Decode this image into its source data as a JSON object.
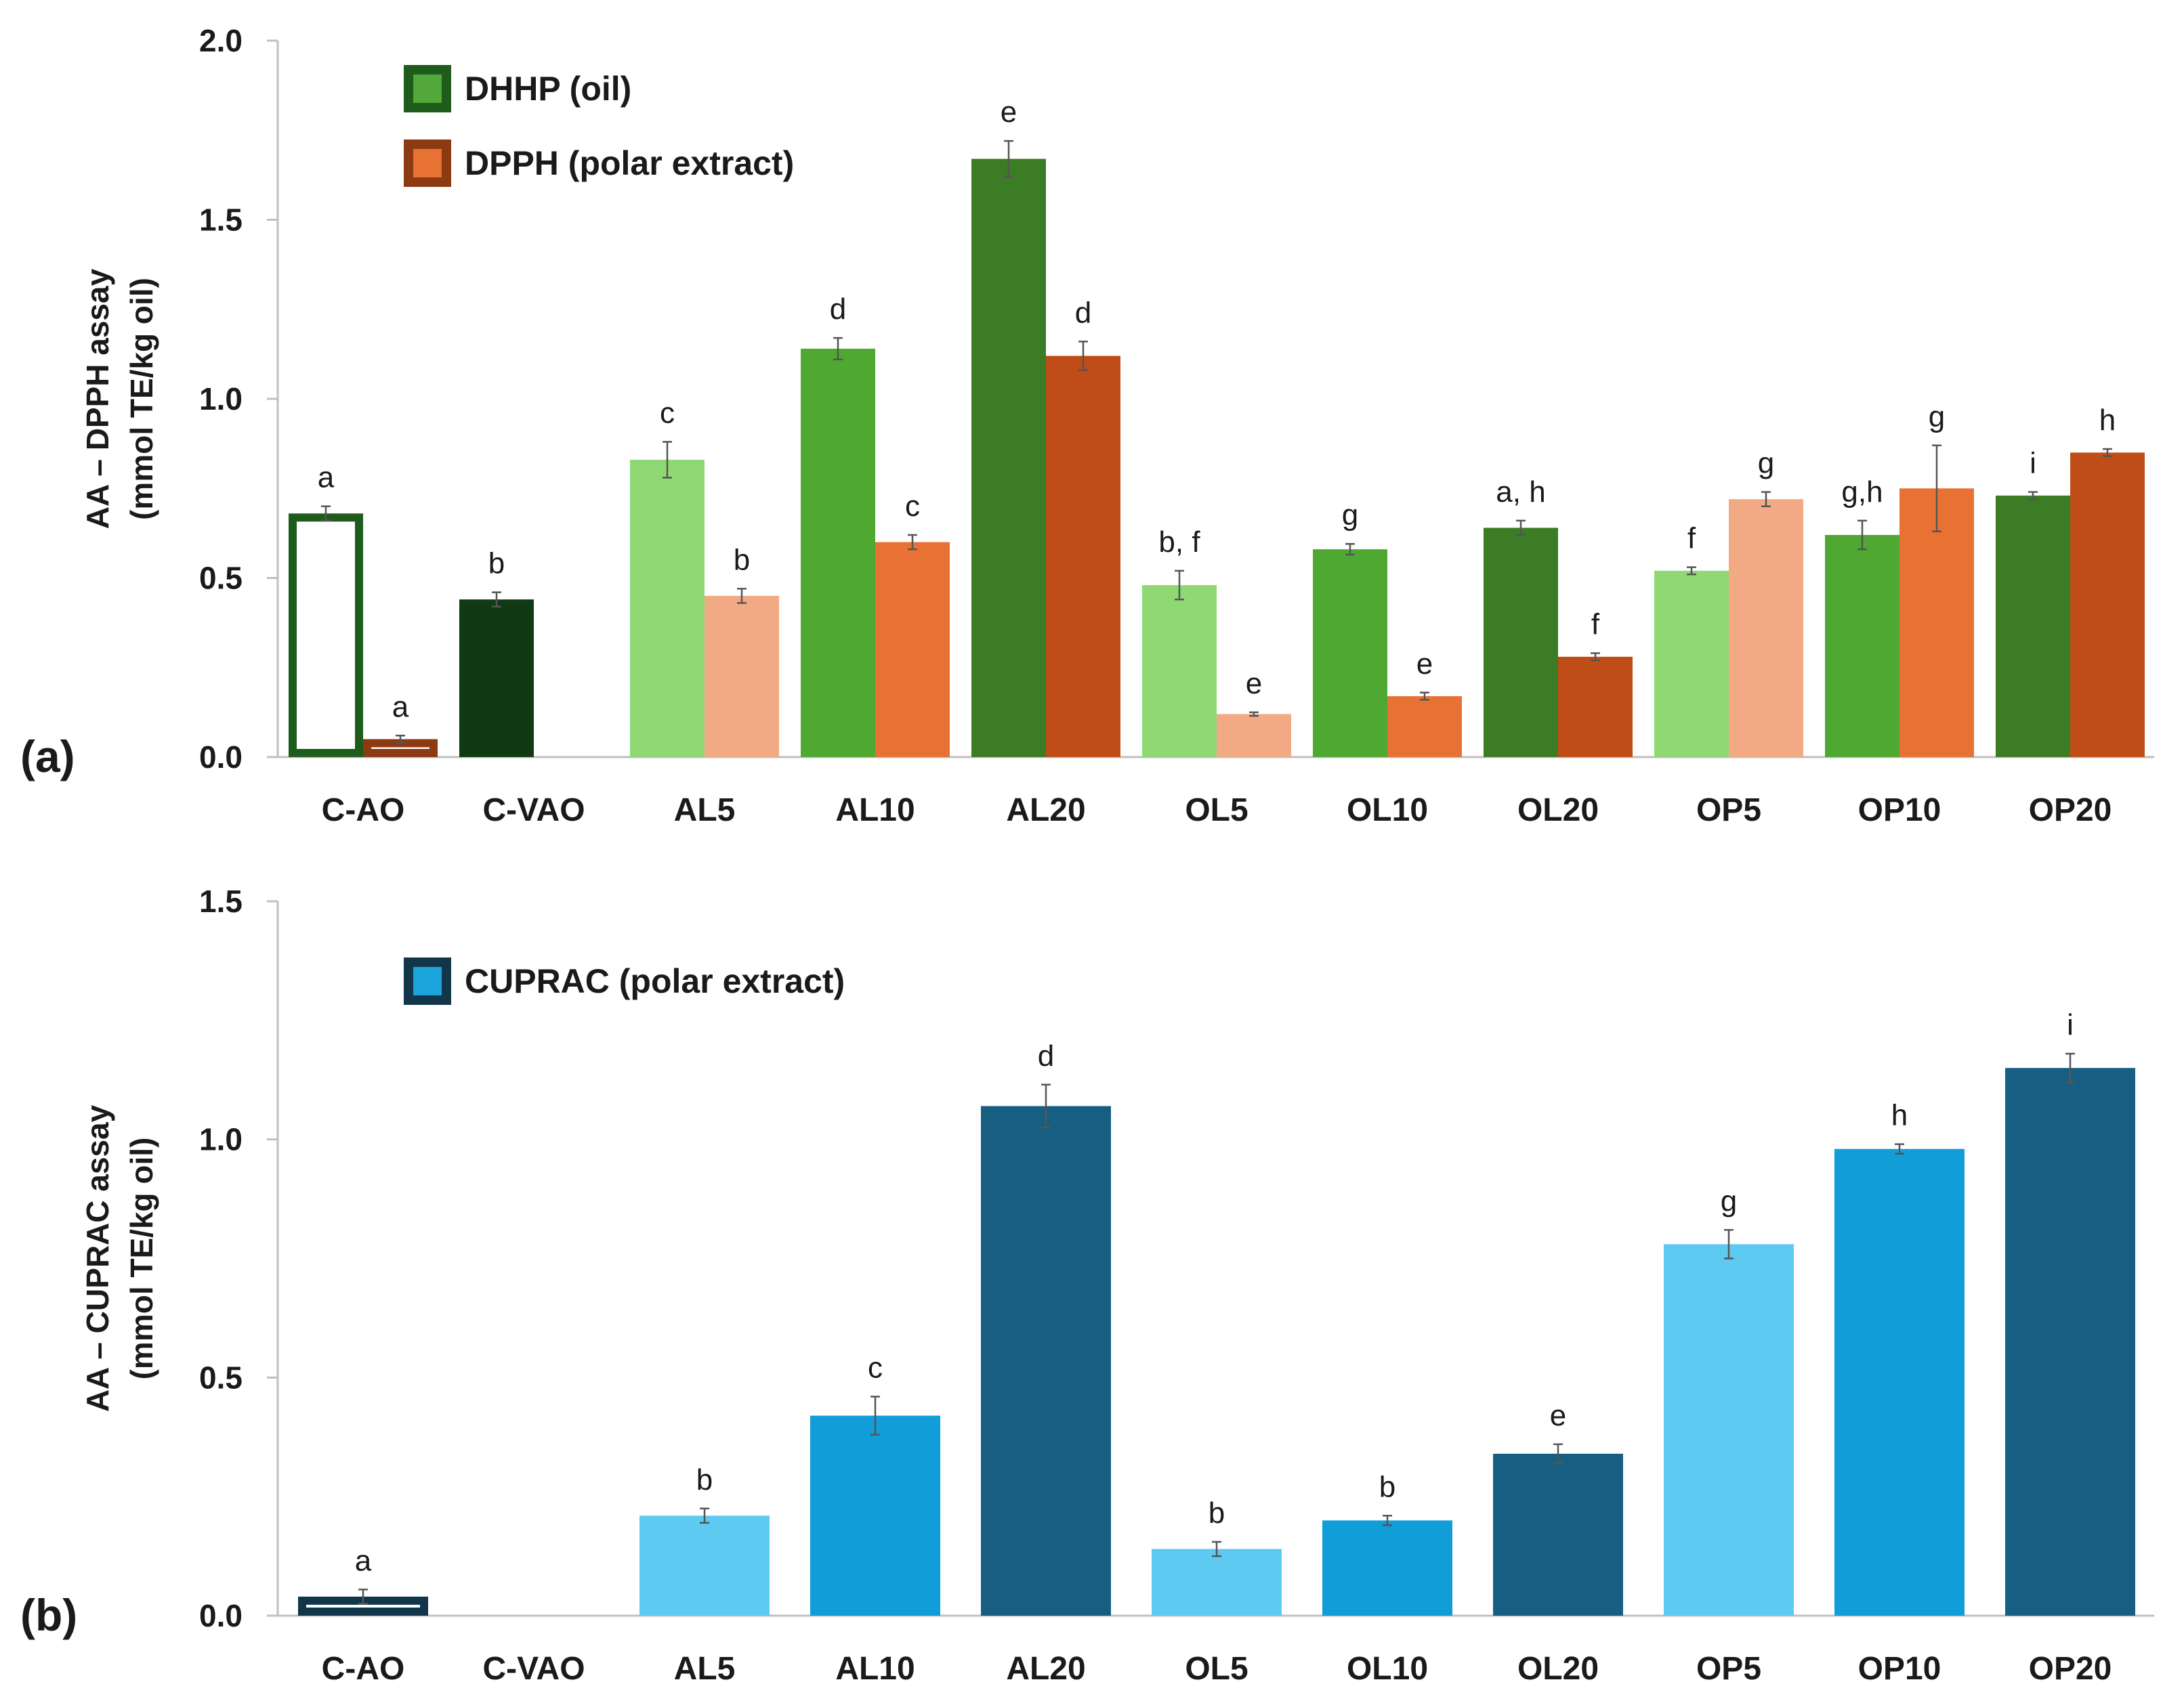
{
  "chart_data": [
    {
      "panel_label": "(a)",
      "type": "bar",
      "ylabel_line1": "AA – DPPH assay",
      "ylabel_line2": "(mmol TE/kg oil)",
      "ylim": [
        0,
        2.0
      ],
      "yticks": [
        "0.0",
        "0.5",
        "1.0",
        "1.5",
        "2.0"
      ],
      "categories": [
        "C-AO",
        "C-VAO",
        "AL5",
        "AL10",
        "AL20",
        "OL5",
        "OL10",
        "OL20",
        "OP5",
        "OP10",
        "OP20"
      ],
      "legend": [
        {
          "name": "DHHP (oil)",
          "outer": "#1e5c1c",
          "inner": "#52a83a"
        },
        {
          "name": "DPPH (polar extract)",
          "outer": "#8b3a12",
          "inner": "#e87234"
        }
      ],
      "series": [
        {
          "name": "DHHP (oil)",
          "values": [
            0.68,
            0.44,
            0.83,
            1.14,
            1.67,
            0.48,
            0.58,
            0.64,
            0.52,
            0.62,
            0.73
          ],
          "errors": [
            0.02,
            0.02,
            0.05,
            0.03,
            0.05,
            0.04,
            0.015,
            0.02,
            0.01,
            0.04,
            0.01
          ],
          "labels": [
            "a",
            "b",
            "c",
            "d",
            "e",
            "b, f",
            "g",
            "a, h",
            "f",
            "g,h",
            "i"
          ],
          "fills": [
            "none",
            "#0f3a14",
            "#8fd873",
            "#4ea832",
            "#3b7c25",
            "#8fd873",
            "#4ea832",
            "#3b7c25",
            "#8fd873",
            "#4ea832",
            "#3b7c25"
          ]
        },
        {
          "name": "DPPH (polar extract)",
          "values": [
            0.05,
            null,
            0.45,
            0.6,
            1.12,
            0.12,
            0.17,
            0.28,
            0.72,
            0.75,
            0.85
          ],
          "errors": [
            0.01,
            null,
            0.02,
            0.02,
            0.04,
            0.005,
            0.01,
            0.01,
            0.02,
            0.12,
            0.01
          ],
          "labels": [
            "a",
            "",
            "b",
            "c",
            "d",
            "e",
            "e",
            "f",
            "g",
            "g",
            "h"
          ],
          "fills": [
            "none",
            "none",
            "#f2aa85",
            "#e87234",
            "#c04d17",
            "#f2aa85",
            "#e87234",
            "#c04d17",
            "#f2aa85",
            "#e87234",
            "#c04d17"
          ]
        }
      ]
    },
    {
      "panel_label": "(b)",
      "type": "bar",
      "ylabel_line1": "AA – CUPRAC assay",
      "ylabel_line2": "(mmol TE/kg oil)",
      "ylim": [
        0,
        1.5
      ],
      "yticks": [
        "0.0",
        "0.5",
        "1.0",
        "1.5"
      ],
      "categories": [
        "C-AO",
        "C-VAO",
        "AL5",
        "AL10",
        "AL20",
        "OL5",
        "OL10",
        "OL20",
        "OP5",
        "OP10",
        "OP20"
      ],
      "legend": [
        {
          "name": "CUPRAC (polar extract)",
          "outer": "#11364a",
          "inner": "#1ba3dc"
        }
      ],
      "series": [
        {
          "name": "CUPRAC (polar extract)",
          "values": [
            0.04,
            null,
            0.21,
            0.42,
            1.07,
            0.14,
            0.2,
            0.34,
            0.78,
            0.98,
            1.15
          ],
          "errors": [
            0.015,
            null,
            0.015,
            0.04,
            0.045,
            0.015,
            0.01,
            0.02,
            0.03,
            0.01,
            0.03
          ],
          "labels": [
            "a",
            "",
            "b",
            "c",
            "d",
            "b",
            "b",
            "e",
            "g",
            "h",
            "i"
          ],
          "fills": [
            "none",
            "none",
            "#5ec9f1",
            "#119ed8",
            "#165f82",
            "#5ec9f1",
            "#119ed8",
            "#165f82",
            "#5ec9f1",
            "#119ed8",
            "#165f82"
          ]
        }
      ]
    }
  ]
}
